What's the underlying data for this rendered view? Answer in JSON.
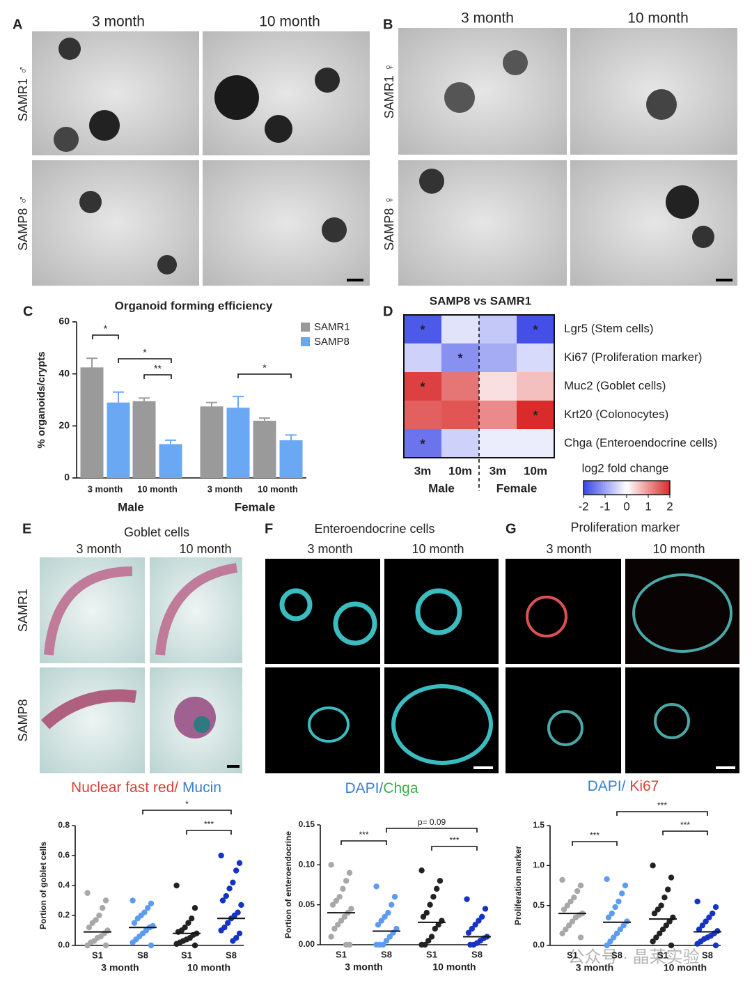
{
  "panels": {
    "A": {
      "letter": "A",
      "columns": [
        "3 month",
        "10 month"
      ],
      "rows": [
        "SAMR1 ♂",
        "SAMP8 ♂"
      ]
    },
    "B": {
      "letter": "B",
      "columns": [
        "3 month",
        "10 month"
      ],
      "rows": [
        "SAMR1 ♀",
        "SAMP8 ♀"
      ]
    },
    "C": {
      "letter": "C"
    },
    "D": {
      "letter": "D"
    },
    "E": {
      "letter": "E",
      "title": "Goblet cells",
      "columns": [
        "3 month",
        "10 month"
      ],
      "rows": [
        "SAMR1",
        "SAMP8"
      ],
      "caption": [
        "Nuclear fast red/",
        " Mucin"
      ]
    },
    "F": {
      "letter": "F",
      "title": "Enteroendocrine cells",
      "columns": [
        "3 month",
        "10 month"
      ],
      "caption": [
        "DAPI/",
        "Chga"
      ]
    },
    "G": {
      "letter": "G",
      "title": "Proliferation marker",
      "columns": [
        "3 month",
        "10 month"
      ],
      "caption": [
        "DAPI/",
        " Ki67"
      ]
    }
  },
  "watermark": "公众号 · 晶莱实验",
  "chart_data": [
    {
      "type": "bar",
      "title": "Organoid forming efficiency",
      "ylabel": "% organoids/crypts",
      "categories": [
        "3 month",
        "10 month",
        "3 month",
        "10 month"
      ],
      "groups": [
        "Male",
        "Female"
      ],
      "series": [
        {
          "name": "SAMR1",
          "color": "#9a9a9a",
          "values": [
            42.5,
            29.5,
            27.5,
            22
          ],
          "errors": [
            3.5,
            1.2,
            1.5,
            1
          ]
        },
        {
          "name": "SAMP8",
          "color": "#6aa8f4",
          "values": [
            29,
            13,
            27,
            14.5
          ],
          "errors": [
            4,
            1.5,
            4.3,
            2
          ]
        }
      ],
      "ylim": [
        0,
        60
      ],
      "yticks": [
        0,
        20,
        40,
        60
      ],
      "annotations": [
        "*",
        "*",
        "**",
        "*"
      ]
    },
    {
      "type": "heatmap",
      "title": "SAMP8 vs SAMR1",
      "rows": [
        "Lgr5 (Stem cells)",
        "Ki67 (Proliferation marker)",
        "Muc2 (Goblet cells)",
        "Krt20 (Colonocytes)",
        "Chga (Enteroendocrine cells)"
      ],
      "columns": [
        "3m",
        "10m",
        "3m",
        "10m"
      ],
      "groups": [
        "Male",
        "Female"
      ],
      "values": [
        [
          -1.8,
          -0.3,
          -0.6,
          -1.9
        ],
        [
          -0.5,
          -1.2,
          -0.9,
          -0.4
        ],
        [
          1.8,
          1.3,
          0.3,
          0.6
        ],
        [
          1.5,
          1.6,
          1.1,
          2.0
        ],
        [
          -1.5,
          -0.5,
          -0.2,
          -0.2
        ]
      ],
      "stars": [
        [
          "*",
          null,
          null,
          "*"
        ],
        [
          null,
          "*",
          null,
          null
        ],
        [
          "*",
          null,
          null,
          null
        ],
        [
          null,
          null,
          null,
          "*"
        ],
        [
          "*",
          null,
          null,
          null
        ]
      ],
      "colorbar_label": "log2 fold change",
      "clim": [
        -2,
        2
      ],
      "cticks": [
        -2,
        -1,
        0,
        1,
        2
      ],
      "colors": [
        "#3946e6",
        "#ffffff",
        "#d92b2b"
      ]
    },
    {
      "type": "strip",
      "ylabel": "Portion of goblet cells",
      "categories": [
        "S1",
        "S8",
        "S1",
        "S8"
      ],
      "timepoints": [
        "3 month",
        "10 month"
      ],
      "ylim": [
        0,
        0.8
      ],
      "yticks": [
        {
          "value": 0,
          "label": "0.0"
        },
        0.2,
        0.4,
        0.6,
        0.8
      ],
      "series": [
        {
          "color": "#a8a8a8",
          "values": [
            0.35,
            0.3,
            0.25,
            0.2,
            0.17,
            0.15,
            0.12,
            0.1,
            0.08,
            0.06,
            0.05,
            0.03,
            0.02,
            0,
            0
          ],
          "mean": 0.09
        },
        {
          "color": "#5b9cf0",
          "values": [
            0.3,
            0.28,
            0.25,
            0.22,
            0.2,
            0.18,
            0.15,
            0.13,
            0.12,
            0.1,
            0.08,
            0.06,
            0.04,
            0.02,
            0
          ],
          "mean": 0.12
        },
        {
          "color": "#222222",
          "values": [
            0.4,
            0.25,
            0.18,
            0.15,
            0.12,
            0.1,
            0.09,
            0.08,
            0.07,
            0.05,
            0.04,
            0.03,
            0.02,
            0.01,
            0
          ],
          "mean": 0.08
        },
        {
          "color": "#1533c4",
          "values": [
            0.6,
            0.55,
            0.5,
            0.42,
            0.38,
            0.33,
            0.3,
            0.27,
            0.22,
            0.2,
            0.18,
            0.15,
            0.12,
            0.1,
            0.08,
            0.05,
            0.03
          ],
          "mean": 0.18
        }
      ],
      "annotations": [
        "*",
        "***"
      ]
    },
    {
      "type": "strip",
      "ylabel": "Portion of enteroendocrine",
      "categories": [
        "S1",
        "S8",
        "S1",
        "S8"
      ],
      "timepoints": [
        "3 month",
        "10 month"
      ],
      "ylim": [
        0,
        0.15
      ],
      "yticks": [
        {
          "value": 0,
          "label": "0.00"
        },
        0.05,
        {
          "value": 0.1,
          "label": "0.10"
        },
        0.15
      ],
      "series": [
        {
          "color": "#a8a8a8",
          "values": [
            0.1,
            0.09,
            0.08,
            0.07,
            0.06,
            0.055,
            0.05,
            0.045,
            0.04,
            0.035,
            0.03,
            0.025,
            0.02,
            0.01,
            0,
            0
          ],
          "mean": 0.04
        },
        {
          "color": "#5b9cf0",
          "values": [
            0.073,
            0.06,
            0.05,
            0.04,
            0.035,
            0.03,
            0.025,
            0.02,
            0.015,
            0.01,
            0.005,
            0,
            0,
            0
          ],
          "mean": 0.017
        },
        {
          "color": "#222222",
          "values": [
            0.093,
            0.08,
            0.07,
            0.06,
            0.05,
            0.04,
            0.035,
            0.03,
            0.025,
            0.02,
            0.01,
            0.005,
            0,
            0
          ],
          "mean": 0.028
        },
        {
          "color": "#1533c4",
          "values": [
            0.057,
            0.045,
            0.035,
            0.03,
            0.025,
            0.02,
            0.015,
            0.01,
            0.008,
            0.005,
            0.002,
            0,
            0
          ],
          "mean": 0.01
        }
      ],
      "annotations": [
        "***",
        "p= 0.09",
        "***"
      ]
    },
    {
      "type": "strip",
      "ylabel": "Proliferation marker",
      "categories": [
        "S1",
        "S8",
        "S1",
        "S8"
      ],
      "timepoints": [
        "3 month",
        "10 month"
      ],
      "ylim": [
        0,
        1.5
      ],
      "yticks": [
        {
          "value": 0,
          "label": "0.0"
        },
        0.5,
        {
          "value": 1,
          "label": "1.0"
        },
        1.5
      ],
      "series": [
        {
          "color": "#a8a8a8",
          "values": [
            0.82,
            0.75,
            0.68,
            0.6,
            0.55,
            0.5,
            0.45,
            0.4,
            0.38,
            0.35,
            0.3,
            0.25,
            0.2,
            0.15,
            0.1
          ],
          "mean": 0.4
        },
        {
          "color": "#5b9cf0",
          "values": [
            0.83,
            0.75,
            0.65,
            0.55,
            0.48,
            0.4,
            0.35,
            0.3,
            0.25,
            0.2,
            0.15,
            0.1,
            0.05,
            0
          ],
          "mean": 0.29
        },
        {
          "color": "#222222",
          "values": [
            1,
            0.85,
            0.7,
            0.6,
            0.5,
            0.45,
            0.4,
            0.35,
            0.3,
            0.25,
            0.2,
            0.15,
            0.1,
            0.05,
            0
          ],
          "mean": 0.33
        },
        {
          "color": "#1533c4",
          "values": [
            0.55,
            0.48,
            0.4,
            0.35,
            0.3,
            0.25,
            0.2,
            0.18,
            0.15,
            0.12,
            0.1,
            0.08,
            0.05,
            0.02,
            0
          ],
          "mean": 0.17
        }
      ],
      "annotations": [
        "***",
        "***",
        "***"
      ]
    }
  ]
}
